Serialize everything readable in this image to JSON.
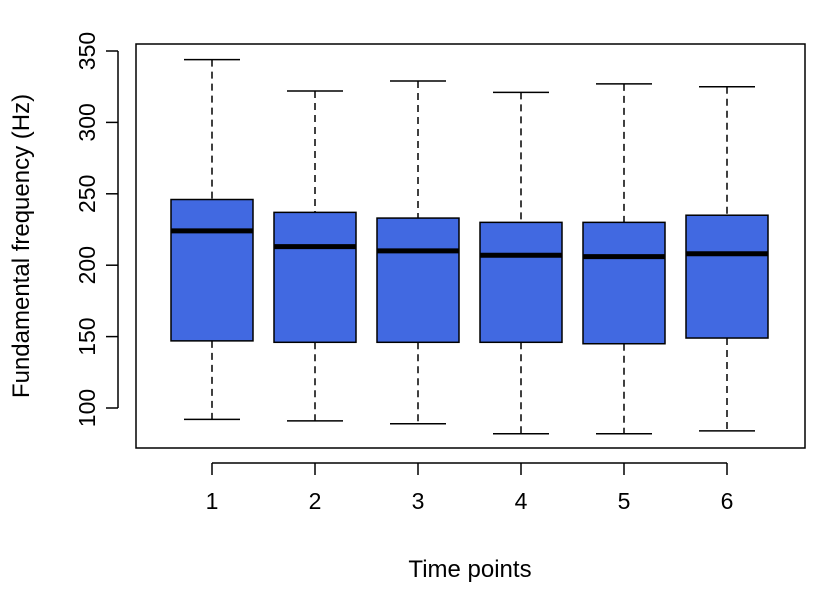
{
  "chart_data": {
    "type": "boxplot",
    "xlabel": "Time points",
    "ylabel": "Fundamental frequency (Hz)",
    "ylim": [
      78,
      352
    ],
    "yticks": [
      100,
      150,
      200,
      250,
      300,
      350
    ],
    "categories": [
      "1",
      "2",
      "3",
      "4",
      "5",
      "6"
    ],
    "boxes": [
      {
        "category": "1",
        "whisker_low": 92,
        "q1": 147,
        "median": 224,
        "q3": 246,
        "whisker_high": 344
      },
      {
        "category": "2",
        "whisker_low": 91,
        "q1": 146,
        "median": 213,
        "q3": 237,
        "whisker_high": 322
      },
      {
        "category": "3",
        "whisker_low": 89,
        "q1": 146,
        "median": 210,
        "q3": 233,
        "whisker_high": 329
      },
      {
        "category": "4",
        "whisker_low": 82,
        "q1": 146,
        "median": 207,
        "q3": 230,
        "whisker_high": 321
      },
      {
        "category": "5",
        "whisker_low": 82,
        "q1": 145,
        "median": 206,
        "q3": 230,
        "whisker_high": 327
      },
      {
        "category": "6",
        "whisker_low": 84,
        "q1": 149,
        "median": 208,
        "q3": 235,
        "whisker_high": 325
      }
    ],
    "box_color": "#4169e1",
    "grid": false,
    "legend": "none"
  }
}
